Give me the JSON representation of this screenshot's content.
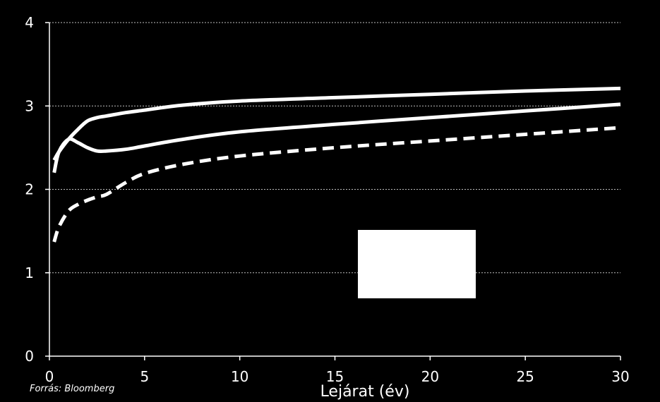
{
  "source": "Forrás: Bloomberg",
  "chart_data": {
    "type": "line",
    "xlabel": "Lejárat (év)",
    "ylabel": "",
    "xlim": [
      0,
      30
    ],
    "ylim": [
      0,
      4
    ],
    "xticks": [
      0,
      5,
      10,
      15,
      20,
      25,
      30
    ],
    "yticks": [
      0,
      1,
      2,
      3,
      4
    ],
    "grid": "horizontal dashed",
    "legend": "white box, lower-middle (entries not readable)",
    "line_color": "#ffffff",
    "background": "#000000",
    "series": [
      {
        "style": "solid",
        "x": [
          0.25,
          0.5,
          1,
          1.5,
          2,
          2.5,
          3,
          4,
          5,
          7,
          10,
          15,
          20,
          25,
          30
        ],
        "y": [
          2.35,
          2.45,
          2.6,
          2.72,
          2.82,
          2.86,
          2.88,
          2.92,
          2.95,
          3.01,
          3.06,
          3.1,
          3.14,
          3.18,
          3.21
        ]
      },
      {
        "style": "solid",
        "x": [
          0.25,
          0.5,
          1,
          1.5,
          2,
          2.5,
          3,
          4,
          5,
          7,
          10,
          15,
          20,
          25,
          30
        ],
        "y": [
          2.2,
          2.45,
          2.6,
          2.56,
          2.5,
          2.46,
          2.46,
          2.48,
          2.52,
          2.6,
          2.69,
          2.78,
          2.86,
          2.94,
          3.02
        ]
      },
      {
        "style": "dashed",
        "x": [
          0.25,
          0.5,
          1,
          1.5,
          2,
          2.5,
          3,
          4,
          5,
          7,
          10,
          15,
          20,
          25,
          30
        ],
        "y": [
          1.37,
          1.55,
          1.74,
          1.82,
          1.87,
          1.91,
          1.94,
          2.08,
          2.19,
          2.3,
          2.4,
          2.5,
          2.58,
          2.66,
          2.74
        ]
      }
    ]
  }
}
